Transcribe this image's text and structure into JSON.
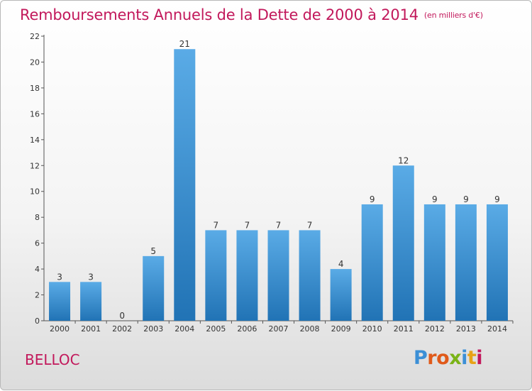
{
  "header": {
    "title": "Remboursements Annuels de la Dette de 2000 à 2014",
    "unit": "(en milliers d'€)"
  },
  "footer": {
    "place": "BELLOC",
    "logo": "Proxiti"
  },
  "colors": {
    "title": "#c2185b",
    "bar_top": "#5aabe6",
    "bar_bottom": "#2173b5",
    "logo_letters": [
      "#3b8fd6",
      "#e05a1a",
      "#e05a1a",
      "#7ab317",
      "#3b8fd6",
      "#e8a317",
      "#c2185b"
    ]
  },
  "chart_data": {
    "type": "bar",
    "categories": [
      "2000",
      "2001",
      "2002",
      "2003",
      "2004",
      "2005",
      "2006",
      "2007",
      "2008",
      "2009",
      "2010",
      "2011",
      "2012",
      "2013",
      "2014"
    ],
    "values": [
      3,
      3,
      0,
      5,
      21,
      7,
      7,
      7,
      7,
      4,
      9,
      12,
      9,
      9,
      9
    ],
    "data_labels": [
      "3",
      "3",
      "0",
      "5",
      "21",
      "7",
      "7",
      "7",
      "7",
      "4",
      "9",
      "12",
      "9",
      "9",
      "9"
    ],
    "yticks": [
      0,
      2,
      4,
      6,
      8,
      10,
      12,
      14,
      16,
      18,
      20,
      22
    ],
    "ylim": [
      0,
      22
    ],
    "grid": false,
    "legend": "none"
  }
}
